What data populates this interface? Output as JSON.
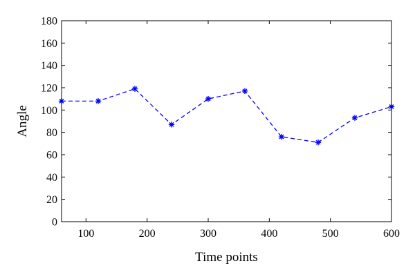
{
  "chart_data": {
    "type": "line",
    "xlabel": "Time points",
    "ylabel": "Angle",
    "xlim": [
      60,
      600
    ],
    "ylim": [
      0,
      180
    ],
    "xticks": [
      100,
      200,
      300,
      400,
      500,
      600
    ],
    "yticks": [
      0,
      20,
      40,
      60,
      80,
      100,
      120,
      140,
      160,
      180
    ],
    "grid": false,
    "series": [
      {
        "color": "#0000ff",
        "line_style": "dashed",
        "marker": "asterisk",
        "x": [
          60,
          120,
          180,
          240,
          300,
          360,
          420,
          480,
          540,
          600
        ],
        "y": [
          108,
          108,
          119,
          87,
          110,
          117,
          76,
          71,
          93,
          103
        ]
      }
    ]
  }
}
